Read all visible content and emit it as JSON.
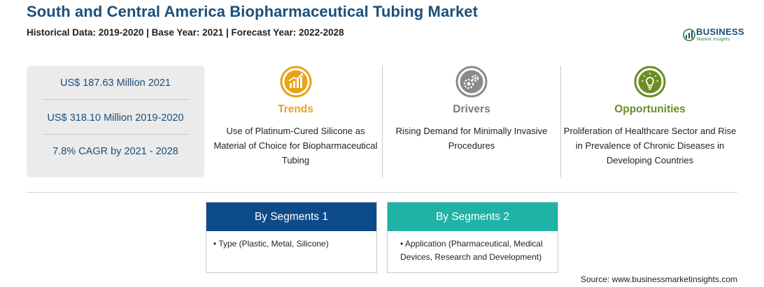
{
  "header": {
    "title": "South and Central America Biopharmaceutical Tubing Market",
    "subtitle": "Historical Data: 2019-2020 | Base Year: 2021 | Forecast Year: 2022-2028"
  },
  "logo": {
    "line1": "BUSINESS",
    "line2": "Market Insights"
  },
  "stats": [
    "US$ 187.63 Million 2021",
    "US$ 318.10 Million 2019-2020",
    "7.8% CAGR by 2021 - 2028"
  ],
  "columns": [
    {
      "icon": "growth-chart-icon",
      "heading": "Trends",
      "color": "#e8a317",
      "text": "Use of Platinum-Cured Silicone as Material of Choice for Biopharmaceutical Tubing"
    },
    {
      "icon": "gears-icon",
      "heading": "Drivers",
      "color": "#7a7a7a",
      "text": "Rising Demand for Minimally Invasive Procedures"
    },
    {
      "icon": "lightbulb-icon",
      "heading": "Opportunities",
      "color": "#6b8e23",
      "text": "Proliferation of Healthcare Sector and Rise in Prevalence of Chronic Diseases in Developing Countries"
    }
  ],
  "segments": [
    {
      "heading": "By Segments 1",
      "color": "#0d4a8a",
      "items": [
        "• Type (Plastic, Metal, Silicone)"
      ]
    },
    {
      "heading": "By Segments 2",
      "color": "#1fb2a6",
      "items": [
        "• Application (Pharmaceutical, Medical Devices, Research and Development)"
      ]
    }
  ],
  "source": "Source: www.businessmarketinsights.com"
}
